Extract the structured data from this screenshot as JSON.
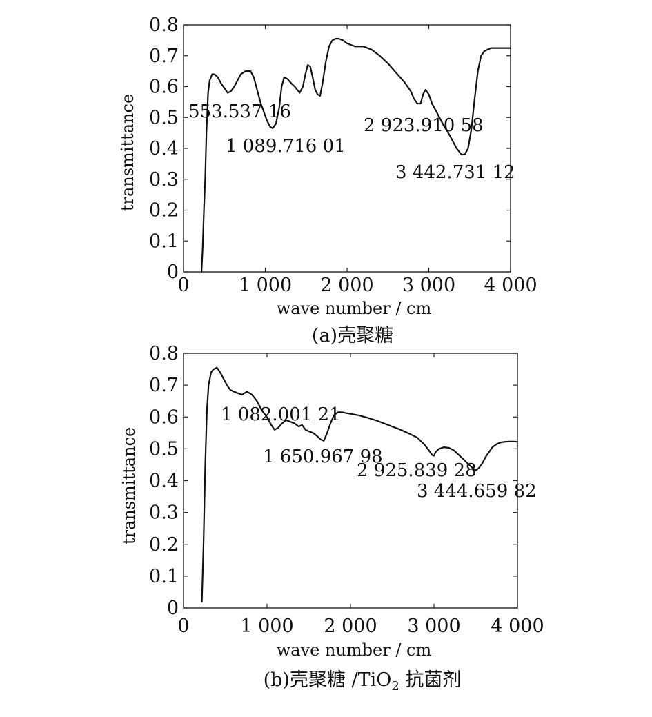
{
  "chart_data": [
    {
      "type": "line",
      "xlabel": "wave number / cm",
      "ylabel": "transmittance",
      "caption": "(a)壳聚糖",
      "xlim": [
        0,
        4000
      ],
      "ylim": [
        0,
        0.8
      ],
      "xticks": [
        0,
        1000,
        2000,
        3000,
        4000
      ],
      "xtick_labels": [
        "0",
        "1 000",
        "2 000",
        "3 000",
        "4 000"
      ],
      "yticks": [
        0,
        0.1,
        0.2,
        0.3,
        0.4,
        0.5,
        0.6,
        0.7,
        0.8
      ],
      "ytick_labels": [
        "0",
        "0.1",
        "0.2",
        "0.3",
        "0.4",
        "0.5",
        "0.6",
        "0.7",
        "0.8"
      ],
      "grid": false,
      "annotations": [
        {
          "text": "553.537 16",
          "x": 553.5,
          "y": 0.52
        },
        {
          "text": "1 089.716 01",
          "x": 1089.7,
          "y": 0.41
        },
        {
          "text": "2 923.910 58",
          "x": 2923.9,
          "y": 0.47
        },
        {
          "text": "3 442.731 12",
          "x": 3442.7,
          "y": 0.33
        }
      ],
      "series": [
        {
          "x": [
            220,
            235,
            250,
            265,
            280,
            300,
            320,
            350,
            380,
            420,
            460,
            500,
            540,
            580,
            620,
            660,
            700,
            760,
            820,
            860,
            900,
            940,
            980,
            1020,
            1060,
            1090,
            1130,
            1170,
            1200,
            1230,
            1270,
            1320,
            1360,
            1390,
            1420,
            1460,
            1490,
            1520,
            1550,
            1580,
            1610,
            1640,
            1670,
            1700,
            1740,
            1780,
            1820,
            1860,
            1900,
            1950,
            2000,
            2100,
            2200,
            2300,
            2400,
            2500,
            2600,
            2700,
            2780,
            2820,
            2860,
            2900,
            2930,
            2960,
            3000,
            3040,
            3100,
            3180,
            3260,
            3340,
            3400,
            3440,
            3480,
            3520,
            3560,
            3600,
            3640,
            3680,
            3720,
            3760,
            3800,
            3850,
            3900,
            3950,
            4000
          ],
          "y": [
            0.0,
            0.08,
            0.2,
            0.3,
            0.45,
            0.58,
            0.62,
            0.64,
            0.64,
            0.63,
            0.61,
            0.595,
            0.58,
            0.585,
            0.6,
            0.62,
            0.64,
            0.65,
            0.65,
            0.63,
            0.59,
            0.55,
            0.52,
            0.49,
            0.47,
            0.465,
            0.48,
            0.53,
            0.6,
            0.63,
            0.625,
            0.61,
            0.6,
            0.59,
            0.58,
            0.6,
            0.64,
            0.67,
            0.665,
            0.63,
            0.59,
            0.575,
            0.57,
            0.61,
            0.68,
            0.73,
            0.75,
            0.755,
            0.755,
            0.75,
            0.74,
            0.73,
            0.73,
            0.72,
            0.7,
            0.675,
            0.645,
            0.615,
            0.585,
            0.56,
            0.545,
            0.545,
            0.575,
            0.59,
            0.575,
            0.545,
            0.515,
            0.475,
            0.44,
            0.4,
            0.38,
            0.38,
            0.4,
            0.46,
            0.56,
            0.65,
            0.7,
            0.715,
            0.72,
            0.725,
            0.725,
            0.725,
            0.725,
            0.725,
            0.725
          ]
        }
      ]
    },
    {
      "type": "line",
      "xlabel": "wave number / cm",
      "ylabel": "transmittance",
      "caption": "(b)壳聚糖 /TiO",
      "caption_sub": "2",
      "caption_tail": " 抗菌剂",
      "xlim": [
        0,
        4000
      ],
      "ylim": [
        0,
        0.8
      ],
      "xticks": [
        0,
        1000,
        2000,
        3000,
        4000
      ],
      "xtick_labels": [
        "0",
        "1 000",
        "2 000",
        "3 000",
        "4 000"
      ],
      "yticks": [
        0,
        0.1,
        0.2,
        0.3,
        0.4,
        0.5,
        0.6,
        0.7,
        0.8
      ],
      "ytick_labels": [
        "0",
        "0.1",
        "0.2",
        "0.3",
        "0.4",
        "0.5",
        "0.6",
        "0.7",
        "0.8"
      ],
      "grid": false,
      "annotations": [
        {
          "text": "1 082.001 21",
          "x": 1082.0,
          "y": 0.59
        },
        {
          "text": "1 650.967 98",
          "x": 1651.0,
          "y": 0.49
        },
        {
          "text": "2 925.839 28",
          "x": 2925.8,
          "y": 0.45
        },
        {
          "text": "3 444.659 82",
          "x": 3444.7,
          "y": 0.38
        }
      ],
      "series": [
        {
          "x": [
            220,
            240,
            260,
            280,
            300,
            330,
            360,
            400,
            440,
            480,
            520,
            560,
            600,
            650,
            700,
            760,
            820,
            880,
            940,
            1000,
            1050,
            1090,
            1130,
            1180,
            1230,
            1280,
            1330,
            1380,
            1420,
            1460,
            1500,
            1550,
            1600,
            1640,
            1680,
            1720,
            1760,
            1800,
            1850,
            1900,
            1950,
            2000,
            2100,
            2200,
            2300,
            2400,
            2500,
            2600,
            2700,
            2800,
            2880,
            2940,
            2980,
            3000,
            3020,
            3060,
            3120,
            3180,
            3240,
            3300,
            3360,
            3420,
            3460,
            3500,
            3540,
            3580,
            3620,
            3660,
            3700,
            3750,
            3800,
            3850,
            3900,
            3950,
            4000
          ],
          "y": [
            0.02,
            0.2,
            0.45,
            0.62,
            0.7,
            0.74,
            0.75,
            0.755,
            0.74,
            0.72,
            0.7,
            0.685,
            0.68,
            0.675,
            0.67,
            0.68,
            0.67,
            0.65,
            0.62,
            0.6,
            0.575,
            0.56,
            0.565,
            0.58,
            0.59,
            0.585,
            0.58,
            0.57,
            0.575,
            0.56,
            0.555,
            0.55,
            0.54,
            0.53,
            0.525,
            0.55,
            0.58,
            0.605,
            0.615,
            0.615,
            0.612,
            0.61,
            0.605,
            0.598,
            0.59,
            0.58,
            0.57,
            0.56,
            0.548,
            0.535,
            0.515,
            0.495,
            0.48,
            0.478,
            0.49,
            0.5,
            0.505,
            0.503,
            0.495,
            0.48,
            0.465,
            0.45,
            0.44,
            0.432,
            0.44,
            0.455,
            0.475,
            0.49,
            0.505,
            0.515,
            0.52,
            0.522,
            0.523,
            0.523,
            0.522
          ]
        }
      ]
    }
  ]
}
